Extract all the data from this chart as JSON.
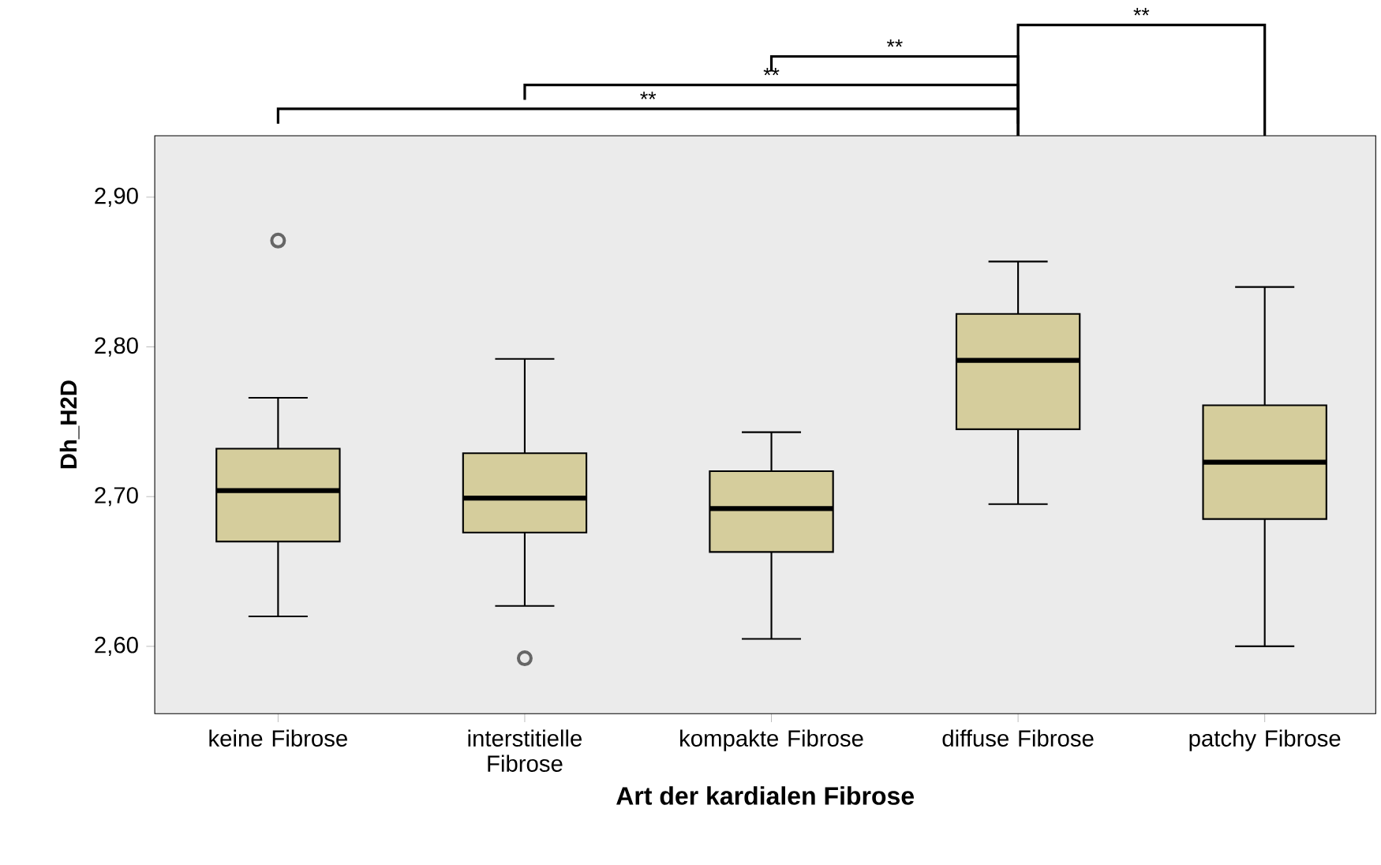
{
  "chart_data": {
    "type": "box",
    "xlabel": "Art der kardialen Fibrose",
    "ylabel": "Dh_H2D",
    "categories": [
      "keine Fibrose",
      "interstitielle Fibrose",
      "kompakte Fibrose",
      "diffuse Fibrose",
      "patchy Fibrose"
    ],
    "color": "#d5cd9c",
    "boxes": [
      {
        "low": 2.62,
        "q1": 2.67,
        "median": 2.704,
        "q3": 2.732,
        "high": 2.766,
        "outliers": [
          2.871
        ]
      },
      {
        "low": 2.627,
        "q1": 2.676,
        "median": 2.699,
        "q3": 2.729,
        "high": 2.792,
        "outliers": [
          2.592
        ]
      },
      {
        "low": 2.605,
        "q1": 2.663,
        "median": 2.692,
        "q3": 2.717,
        "high": 2.743
      },
      {
        "low": 2.695,
        "q1": 2.745,
        "median": 2.791,
        "q3": 2.822,
        "high": 2.857
      },
      {
        "low": 2.6,
        "q1": 2.685,
        "median": 2.723,
        "q3": 2.761,
        "high": 2.84
      }
    ],
    "ylim": [
      2.555,
      2.941
    ],
    "yticks": [
      {
        "value": 2.6,
        "label": "2,60"
      },
      {
        "value": 2.7,
        "label": "2,70"
      },
      {
        "value": 2.8,
        "label": "2,80"
      },
      {
        "value": 2.9,
        "label": "2,90"
      }
    ],
    "annotations": [
      "**",
      "**",
      "**",
      "**"
    ],
    "grid": false
  }
}
